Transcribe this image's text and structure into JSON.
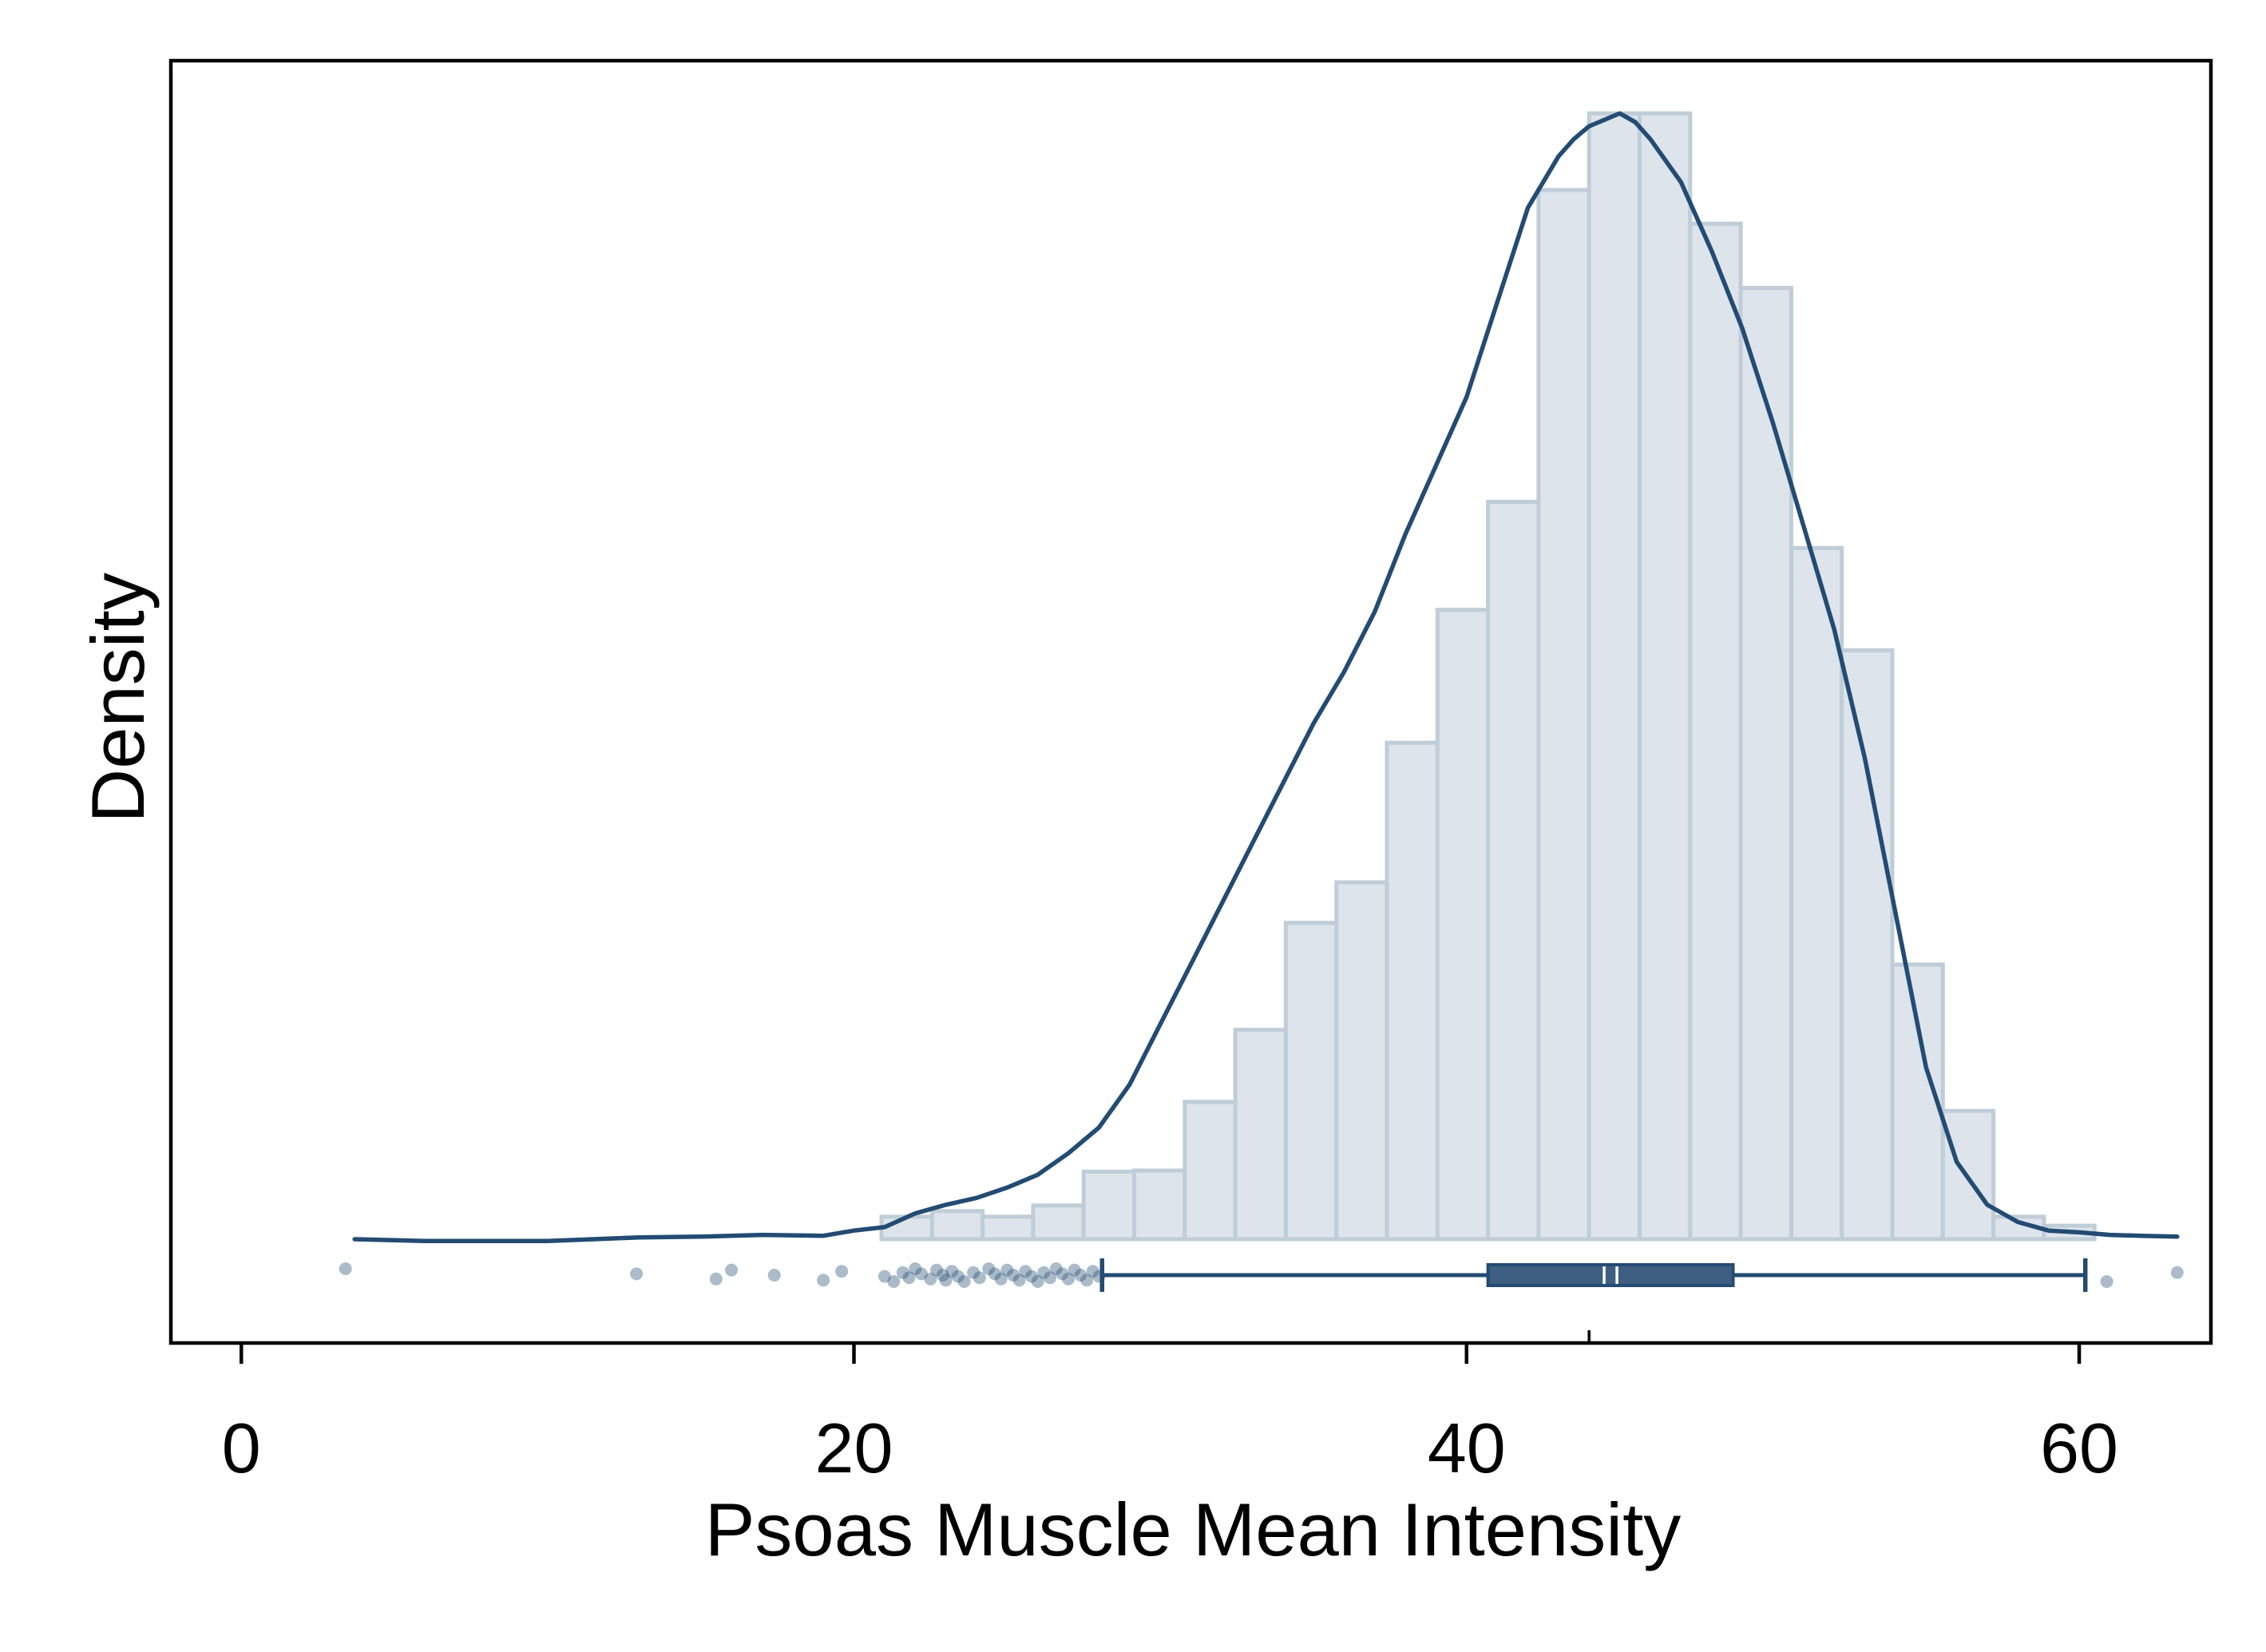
{
  "chart_data": {
    "type": "histogram",
    "xlabel": "Psoas Muscle Mean Intensity",
    "ylabel": "Density",
    "xlim": [
      -2.3,
      64.3
    ],
    "xticks": [
      0,
      20,
      40,
      60
    ],
    "xtick_labels": [
      "0",
      "20",
      "40",
      "60"
    ],
    "y_tick_labels_shown": false,
    "grid": false,
    "colors": {
      "bar_fill": "#dde4eb",
      "bar_edge": "#bfcdd8",
      "kde_line": "#234b73",
      "box_fill": "#3e5f82",
      "box_line": "#234b73",
      "median_marker": "#ffffff",
      "outlier": "#234b73"
    },
    "histogram": {
      "bin_edges": [
        20.9,
        22.55,
        24.2,
        25.85,
        27.5,
        29.15,
        30.8,
        32.45,
        34.1,
        35.75,
        37.4,
        39.05,
        40.7,
        42.35,
        44.0,
        45.65,
        47.3,
        48.95,
        50.6,
        52.25,
        53.9,
        55.55,
        57.2,
        58.85,
        60.5
      ],
      "relative_heights": [
        0.02,
        0.025,
        0.02,
        0.03,
        0.06,
        0.061,
        0.122,
        0.186,
        0.281,
        0.317,
        0.441,
        0.559,
        0.655,
        0.932,
        1.0,
        1.0,
        0.902,
        0.845,
        0.614,
        0.523,
        0.244,
        0.114,
        0.02,
        0.012
      ]
    },
    "kde": {
      "x": [
        3.7,
        6.0,
        8.0,
        10.0,
        11.5,
        13.0,
        15.0,
        17.0,
        19.0,
        20.0,
        21.0,
        22.0,
        23.0,
        24.0,
        25.0,
        26.0,
        27.0,
        28.0,
        29.0,
        30.0,
        31.0,
        32.0,
        33.0,
        34.0,
        35.0,
        36.0,
        37.0,
        38.0,
        39.0,
        40.0,
        41.0,
        42.0,
        43.0,
        43.5,
        44.0,
        45.0,
        45.5,
        46.0,
        47.0,
        48.0,
        49.0,
        50.0,
        51.0,
        52.0,
        53.0,
        54.0,
        55.0,
        56.0,
        57.0,
        58.0,
        59.0,
        60.0,
        61.0,
        62.0,
        63.2
      ],
      "y": [
        0.0,
        -0.002,
        -0.002,
        -0.002,
        0.0,
        0.002,
        0.003,
        0.005,
        0.004,
        0.01,
        0.014,
        0.03,
        0.04,
        0.048,
        0.06,
        0.075,
        0.1,
        0.13,
        0.18,
        0.25,
        0.32,
        0.39,
        0.46,
        0.53,
        0.6,
        0.66,
        0.73,
        0.82,
        0.9,
        0.98,
        1.09,
        1.2,
        1.26,
        1.28,
        1.295,
        1.31,
        1.3,
        1.28,
        1.23,
        1.15,
        1.06,
        0.95,
        0.83,
        0.71,
        0.56,
        0.38,
        0.2,
        0.09,
        0.04,
        0.02,
        0.01,
        0.008,
        0.005,
        0.004,
        0.003
      ],
      "relative_density": true
    },
    "boxplot": {
      "whisker_low": 28.1,
      "q1": 40.7,
      "median": 44.7,
      "q3": 48.7,
      "whisker_high": 60.2,
      "mean": 44.0,
      "outliers": [
        3.4,
        12.9,
        15.5,
        16.0,
        17.4,
        19.0,
        19.6,
        21.0,
        21.3,
        21.6,
        21.8,
        22.0,
        22.2,
        22.5,
        22.7,
        22.9,
        23.0,
        23.2,
        23.4,
        23.6,
        23.9,
        24.1,
        24.4,
        24.6,
        24.8,
        25.0,
        25.2,
        25.4,
        25.6,
        25.8,
        26.0,
        26.2,
        26.4,
        26.6,
        26.8,
        27.0,
        27.2,
        27.4,
        27.6,
        27.8,
        28.0,
        60.9,
        63.2
      ]
    }
  }
}
